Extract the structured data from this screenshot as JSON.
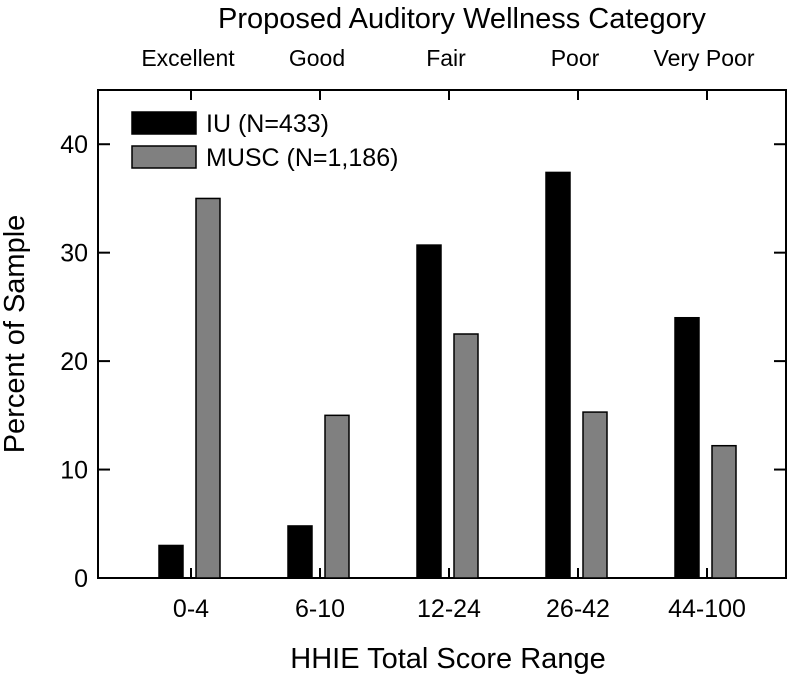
{
  "chart_data": {
    "type": "bar",
    "top_axis_title": "Proposed Auditory Wellness Category",
    "top_categories": [
      "Excellent",
      "Good",
      "Fair",
      "Poor",
      "Very Poor"
    ],
    "categories": [
      "0-4",
      "6-10",
      "12-24",
      "26-42",
      "44-100"
    ],
    "xlabel": "HHIE Total Score Range",
    "ylabel": "Percent of Sample",
    "ylim": [
      0,
      45
    ],
    "yticks": [
      0,
      10,
      20,
      30,
      40
    ],
    "grid": false,
    "legend_position": "top-left",
    "series": [
      {
        "name": "IU (N=433)",
        "color": "#000000",
        "values": [
          3.0,
          4.8,
          30.7,
          37.4,
          24.0
        ]
      },
      {
        "name": "MUSC (N=1,186)",
        "color": "#808080",
        "values": [
          35.0,
          15.0,
          22.5,
          15.3,
          12.2
        ]
      }
    ]
  }
}
